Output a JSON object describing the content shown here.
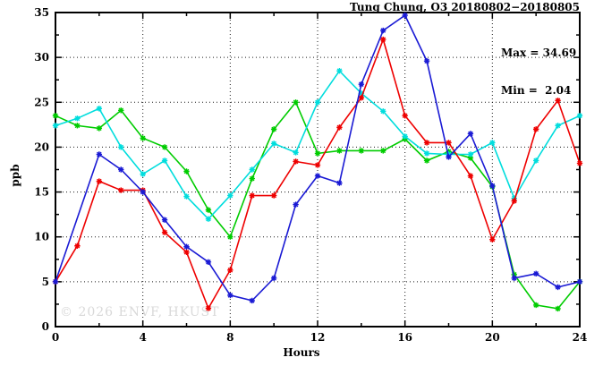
{
  "chart_data": {
    "type": "line",
    "title": "Tung Chung, O3 20180802−20180805",
    "xlabel": "Hours",
    "ylabel": "ppb",
    "watermark": "© 2026 ENVF, HKUST",
    "annotations": {
      "max_label": "Max = 34.69",
      "min_label": "Min =  2.04",
      "max": 34.69,
      "min": 2.04
    },
    "xlim": [
      0,
      24
    ],
    "ylim": [
      0,
      35
    ],
    "xticks": [
      0,
      4,
      8,
      12,
      16,
      20,
      24
    ],
    "yticks": [
      0,
      5,
      10,
      15,
      20,
      25,
      30,
      35
    ],
    "x_minor_ticks": [
      2,
      6,
      10,
      14,
      18,
      22
    ],
    "y_minor_ticks": [
      2.5,
      7.5,
      12.5,
      17.5,
      22.5,
      27.5,
      32.5
    ],
    "grid": {
      "vertical_at": [
        4,
        8,
        12,
        16,
        20
      ],
      "horizontal_at": [
        5,
        10,
        15,
        20,
        25,
        30
      ]
    },
    "x": [
      0,
      1,
      2,
      3,
      4,
      5,
      6,
      7,
      8,
      9,
      10,
      11,
      12,
      13,
      14,
      15,
      16,
      17,
      18,
      19,
      20,
      21,
      22,
      23,
      24
    ],
    "series": [
      {
        "name": "green",
        "color": "#00cc00",
        "values": [
          23.5,
          22.4,
          22.1,
          24.1,
          21.0,
          20.0,
          17.3,
          13.0,
          10.0,
          16.5,
          22.0,
          25.0,
          19.3,
          19.6,
          19.6,
          19.6,
          20.9,
          18.5,
          19.5,
          18.8,
          15.6,
          5.8,
          2.4,
          2.0,
          5.0
        ]
      },
      {
        "name": "cyan",
        "color": "#00dddd",
        "values": [
          22.4,
          23.2,
          24.3,
          20.0,
          17.0,
          18.5,
          14.5,
          12.0,
          14.6,
          17.5,
          20.4,
          19.4,
          25.0,
          28.5,
          26.0,
          24.0,
          21.2,
          19.3,
          19.2,
          19.2,
          20.5,
          14.3,
          18.5,
          22.4,
          23.5
        ]
      },
      {
        "name": "red",
        "color": "#ee0000",
        "values": [
          5.0,
          9.0,
          16.2,
          15.2,
          15.2,
          10.5,
          8.3,
          2.04,
          6.3,
          14.6,
          14.6,
          18.4,
          18.0,
          22.2,
          25.5,
          32.0,
          23.5,
          20.5,
          20.5,
          16.8,
          9.7,
          14.0,
          22.0,
          25.2,
          18.2
        ]
      },
      {
        "name": "blue",
        "color": "#1a1ad4",
        "values": [
          5.0,
          null,
          19.2,
          17.5,
          15.0,
          11.9,
          8.9,
          7.2,
          3.5,
          2.9,
          5.4,
          13.6,
          16.8,
          16.0,
          27.0,
          33.0,
          34.69,
          29.6,
          18.9,
          21.5,
          15.7,
          5.4,
          5.9,
          4.4,
          5.0
        ]
      }
    ],
    "legend": "none",
    "grid_on": true
  }
}
